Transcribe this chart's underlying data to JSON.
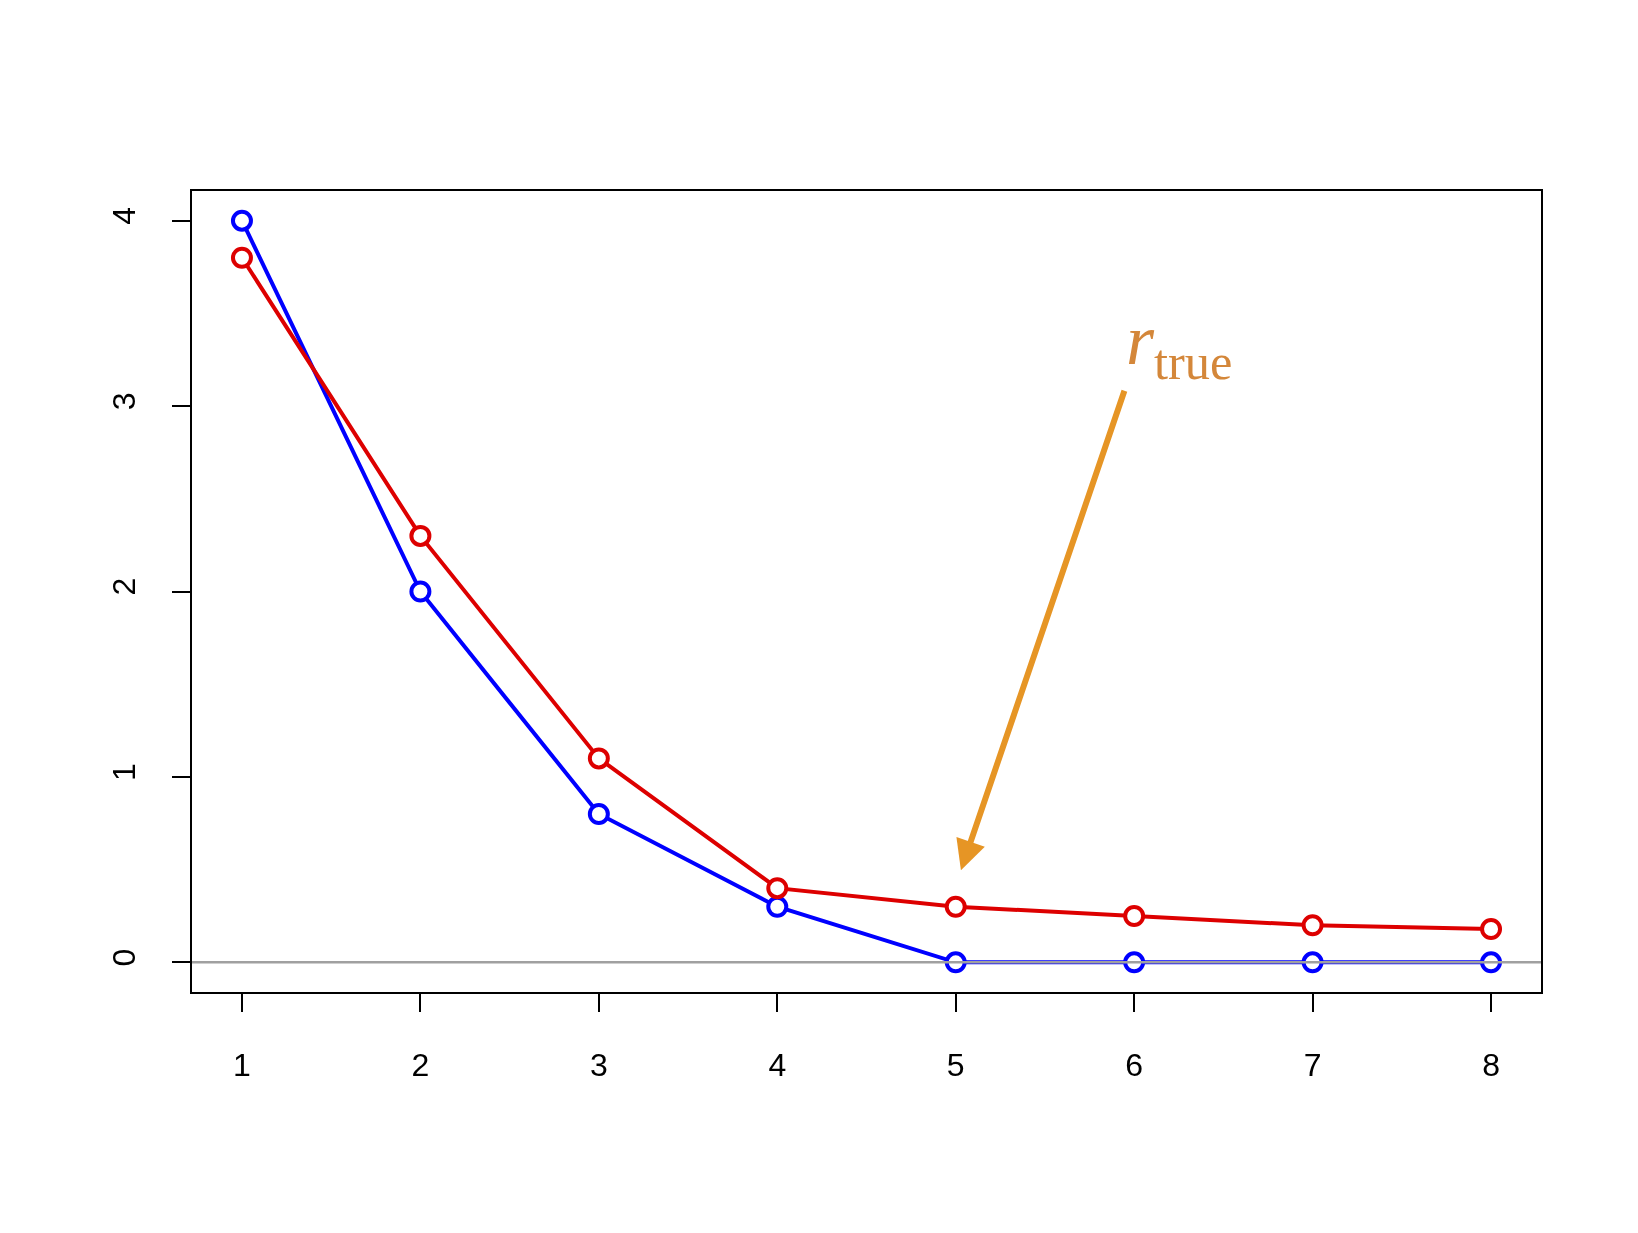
{
  "chart_data": {
    "type": "line",
    "x": [
      1,
      2,
      3,
      4,
      5,
      6,
      7,
      8
    ],
    "series": [
      {
        "color": "#0000ff",
        "values": [
          4,
          2,
          0.8,
          0.3,
          0,
          0,
          0,
          0
        ]
      },
      {
        "color": "#dd0000",
        "values": [
          3.8,
          2.3,
          1.1,
          0.4,
          0.3,
          0.25,
          0.2,
          0.18
        ]
      }
    ],
    "xlim": [
      0.72,
      8.28
    ],
    "ylim": [
      -0.16,
      4.16
    ],
    "xticks": [
      1,
      2,
      3,
      4,
      5,
      6,
      7,
      8
    ],
    "yticks": [
      0,
      1,
      2,
      3,
      4
    ],
    "ref_lines": [
      {
        "axis": "y",
        "value": 0,
        "color": "#a0a0a0"
      }
    ],
    "annotations": [
      "r$_{true}$"
    ],
    "grid": false,
    "marker": "circle",
    "line_style": "solid"
  }
}
